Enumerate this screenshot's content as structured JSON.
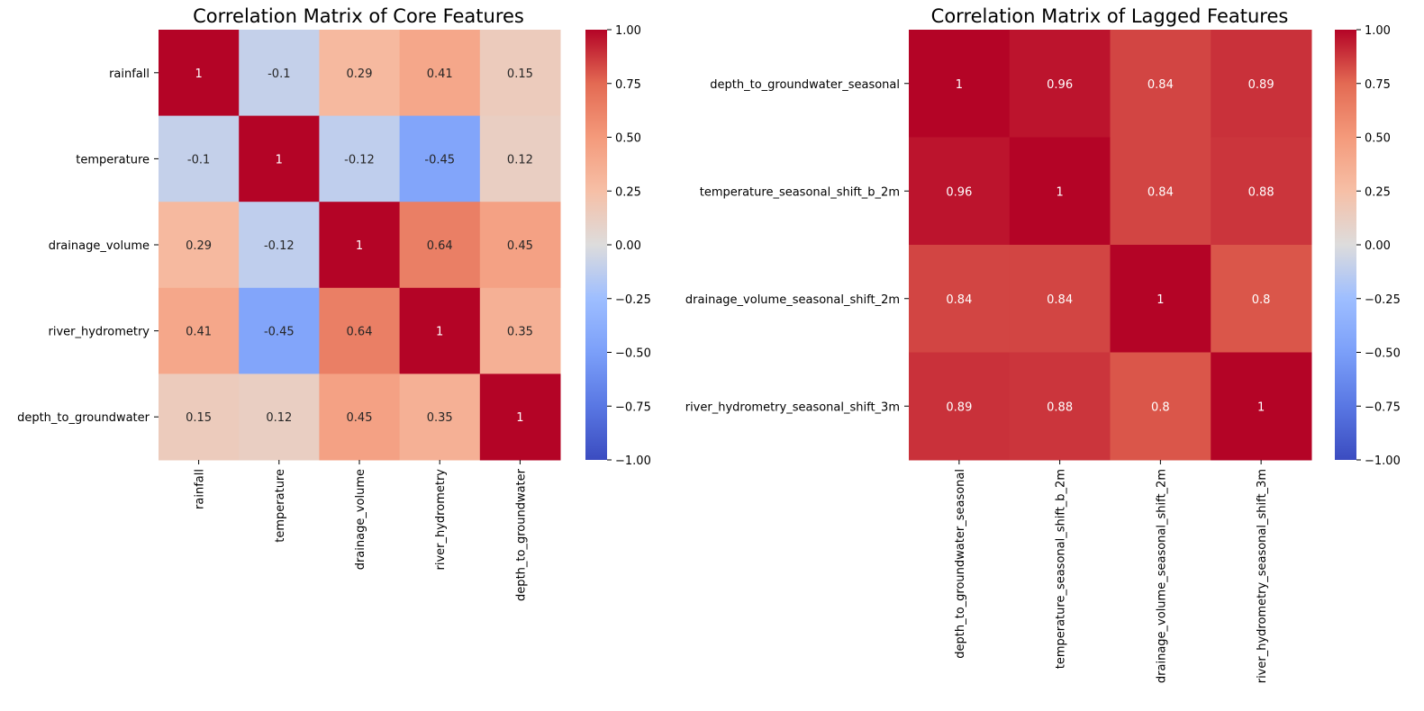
{
  "chart_data": [
    {
      "type": "heatmap",
      "title": "Correlation Matrix of Core Features",
      "labels": [
        "rainfall",
        "temperature",
        "drainage_volume",
        "river_hydrometry",
        "depth_to_groundwater"
      ],
      "values": [
        [
          1,
          -0.1,
          0.29,
          0.41,
          0.15
        ],
        [
          -0.1,
          1,
          -0.12,
          -0.45,
          0.12
        ],
        [
          0.29,
          -0.12,
          1,
          0.64,
          0.45
        ],
        [
          0.41,
          -0.45,
          0.64,
          1,
          0.35
        ],
        [
          0.15,
          0.12,
          0.45,
          0.35,
          1
        ]
      ],
      "value_labels": [
        [
          "1",
          "-0.1",
          "0.29",
          "0.41",
          "0.15"
        ],
        [
          "-0.1",
          "1",
          "-0.12",
          "-0.45",
          "0.12"
        ],
        [
          "0.29",
          "-0.12",
          "1",
          "0.64",
          "0.45"
        ],
        [
          "0.41",
          "-0.45",
          "0.64",
          "1",
          "0.35"
        ],
        [
          "0.15",
          "0.12",
          "0.45",
          "0.35",
          "1"
        ]
      ],
      "colormap": "coolwarm",
      "vmin": -1,
      "vmax": 1,
      "colorbar_ticks": [
        "1.00",
        "0.75",
        "0.50",
        "0.25",
        "0.00",
        "−0.25",
        "−0.50",
        "−0.75",
        "−1.00"
      ]
    },
    {
      "type": "heatmap",
      "title": "Correlation Matrix of Lagged Features",
      "labels": [
        "depth_to_groundwater_seasonal",
        "temperature_seasonal_shift_b_2m",
        "drainage_volume_seasonal_shift_2m",
        "river_hydrometry_seasonal_shift_3m"
      ],
      "values": [
        [
          1,
          0.96,
          0.84,
          0.89
        ],
        [
          0.96,
          1,
          0.84,
          0.88
        ],
        [
          0.84,
          0.84,
          1,
          0.8
        ],
        [
          0.89,
          0.88,
          0.8,
          1
        ]
      ],
      "value_labels": [
        [
          "1",
          "0.96",
          "0.84",
          "0.89"
        ],
        [
          "0.96",
          "1",
          "0.84",
          "0.88"
        ],
        [
          "0.84",
          "0.84",
          "1",
          "0.8"
        ],
        [
          "0.89",
          "0.88",
          "0.8",
          "1"
        ]
      ],
      "colormap": "coolwarm",
      "vmin": -1,
      "vmax": 1,
      "colorbar_ticks": [
        "1.00",
        "0.75",
        "0.50",
        "0.25",
        "0.00",
        "−0.25",
        "−0.50",
        "−0.75",
        "−1.00"
      ]
    }
  ]
}
